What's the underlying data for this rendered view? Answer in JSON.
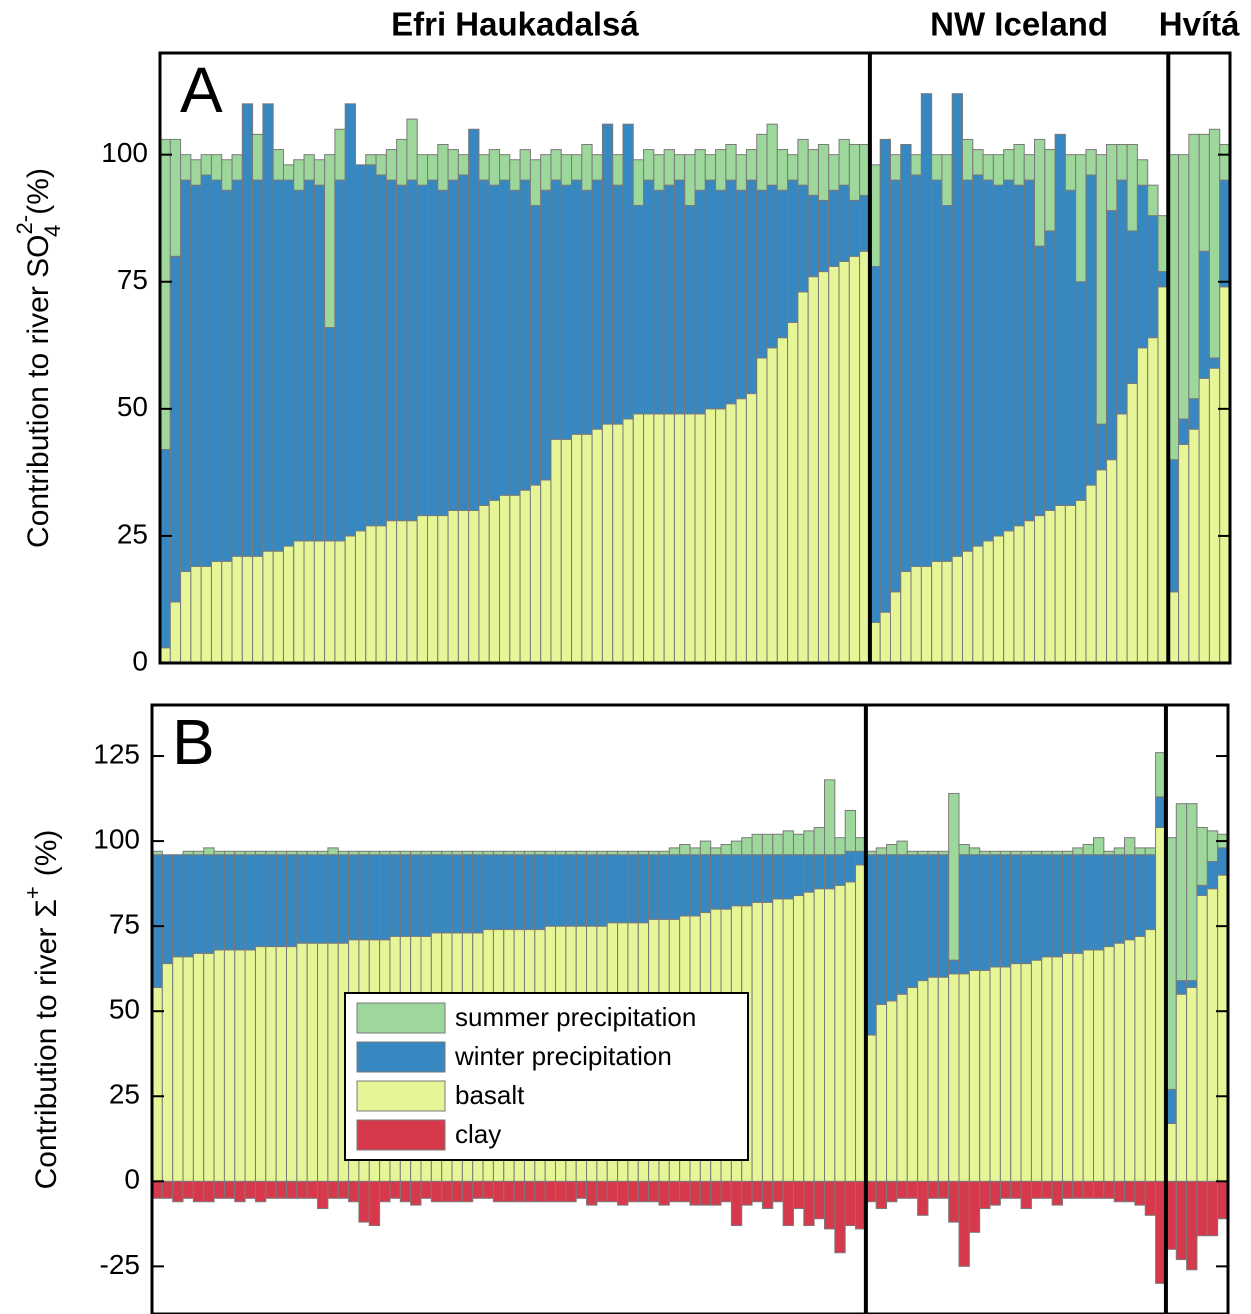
{
  "chart_data": [
    {
      "type": "stacked_bar",
      "panel_label": "A",
      "y_label": {
        "text": "Contribution to river SO",
        "sup": "2-",
        "sub": "4",
        "unit": "(%)"
      },
      "ylim": [
        0,
        120
      ],
      "yticks": [
        0,
        25,
        50,
        75,
        100
      ],
      "series": [
        {
          "color": "#9dd79b"
        },
        {
          "color": "#3787c0"
        },
        {
          "color": "#e6f697"
        }
      ],
      "groups": [
        {
          "label": "Efri Haukadalsá",
          "values": [
            [
              61,
              23,
              5,
              5,
              4,
              5,
              6,
              5,
              0,
              9,
              0,
              6,
              3,
              6,
              5,
              5,
              34,
              10,
              0,
              0,
              2,
              4,
              6,
              9,
              12,
              6,
              5,
              9,
              6,
              4,
              0,
              5,
              7,
              5,
              6,
              6,
              9,
              7,
              6,
              6,
              5,
              9,
              5,
              0,
              6,
              0,
              9,
              6,
              7,
              7,
              5,
              10,
              8,
              5,
              8,
              7,
              7,
              6,
              11,
              12,
              8,
              5,
              9,
              9,
              11,
              7,
              9,
              11,
              10
            ],
            [
              39,
              68,
              77,
              75,
              77,
              75,
              73,
              74,
              89,
              74,
              88,
              73,
              72,
              69,
              71,
              70,
              42,
              71,
              85,
              72,
              71,
              69,
              67,
              66,
              67,
              65,
              66,
              64,
              65,
              66,
              75,
              64,
              62,
              62,
              60,
              61,
              55,
              57,
              51,
              50,
              50,
              48,
              49,
              59,
              47,
              58,
              41,
              46,
              44,
              45,
              46,
              41,
              44,
              45,
              43,
              44,
              41,
              42,
              33,
              32,
              29,
              28,
              21,
              16,
              14,
              15,
              15,
              11,
              11
            ],
            [
              3,
              12,
              18,
              19,
              19,
              20,
              20,
              21,
              21,
              21,
              22,
              22,
              23,
              24,
              24,
              24,
              24,
              24,
              25,
              26,
              27,
              27,
              28,
              28,
              28,
              29,
              29,
              29,
              30,
              30,
              30,
              31,
              32,
              33,
              33,
              34,
              35,
              36,
              44,
              44,
              45,
              45,
              46,
              47,
              47,
              48,
              49,
              49,
              49,
              49,
              49,
              49,
              49,
              50,
              50,
              51,
              52,
              53,
              60,
              62,
              64,
              67,
              73,
              76,
              77,
              78,
              79,
              80,
              81
            ]
          ]
        },
        {
          "label": "NW Iceland",
          "values": [
            [
              20,
              0,
              5,
              0,
              4,
              0,
              5,
              10,
              0,
              8,
              5,
              5,
              6,
              6,
              8,
              5,
              21,
              16,
              0,
              7,
              25,
              5,
              53,
              13,
              7,
              17,
              5,
              6,
              11
            ],
            [
              70,
              93,
              81,
              84,
              77,
              93,
              75,
              70,
              91,
              73,
              73,
              71,
              69,
              69,
              67,
              67,
              53,
              55,
              73,
              62,
              43,
              61,
              9,
              49,
              46,
              30,
              32,
              24,
              3
            ],
            [
              8,
              10,
              14,
              18,
              19,
              19,
              20,
              20,
              21,
              22,
              23,
              24,
              25,
              26,
              27,
              28,
              29,
              30,
              31,
              31,
              32,
              35,
              38,
              40,
              49,
              55,
              62,
              64,
              74
            ]
          ]
        },
        {
          "label": "Hvítá",
          "values": [
            [
              60,
              52,
              52,
              23,
              45,
              7
            ],
            [
              26,
              5,
              6,
              25,
              2,
              21
            ],
            [
              14,
              43,
              46,
              56,
              58,
              74
            ]
          ]
        }
      ]
    },
    {
      "type": "stacked_bar",
      "panel_label": "B",
      "y_label": {
        "text": "Contribution to river",
        "symbol": "Σ",
        "sup": "+",
        "unit": "(%)"
      },
      "ylim": [
        -39,
        140
      ],
      "yticks": [
        -25,
        0,
        25,
        50,
        75,
        100,
        125
      ],
      "legend": "lower left",
      "series": [
        {
          "name": "summer precipitation",
          "color": "#9dd79b"
        },
        {
          "name": "winter precipitation",
          "color": "#3787c0"
        },
        {
          "name": "basalt",
          "color": "#e6f697"
        },
        {
          "name": "clay",
          "color": "#d5394b"
        }
      ],
      "groups": [
        {
          "values": [
            [
              1,
              0,
              0,
              1,
              1,
              2,
              1,
              1,
              1,
              1,
              1,
              1,
              1,
              1,
              1,
              1,
              1,
              2,
              1,
              1,
              1,
              1,
              1,
              1,
              1,
              1,
              1,
              1,
              1,
              1,
              1,
              1,
              1,
              1,
              1,
              1,
              1,
              1,
              1,
              1,
              1,
              1,
              1,
              1,
              1,
              1,
              1,
              1,
              1,
              1,
              2,
              3,
              2,
              4,
              2,
              3,
              4,
              5,
              6,
              6,
              6,
              7,
              6,
              7,
              8,
              22,
              5,
              12,
              4
            ],
            [
              39,
              32,
              30,
              30,
              29,
              29,
              28,
              28,
              28,
              28,
              27,
              27,
              27,
              27,
              26,
              26,
              26,
              26,
              26,
              25,
              25,
              25,
              25,
              24,
              24,
              24,
              24,
              23,
              23,
              23,
              23,
              23,
              22,
              22,
              22,
              22,
              22,
              22,
              21,
              21,
              21,
              21,
              21,
              21,
              20,
              20,
              20,
              20,
              19,
              19,
              19,
              18,
              18,
              17,
              16,
              16,
              15,
              15,
              14,
              14,
              13,
              13,
              12,
              11,
              10,
              10,
              9,
              9,
              4
            ],
            [
              57,
              64,
              66,
              66,
              67,
              67,
              68,
              68,
              68,
              68,
              69,
              69,
              69,
              69,
              70,
              70,
              70,
              70,
              70,
              71,
              71,
              71,
              71,
              72,
              72,
              72,
              72,
              73,
              73,
              73,
              73,
              73,
              74,
              74,
              74,
              74,
              74,
              74,
              75,
              75,
              75,
              75,
              75,
              75,
              76,
              76,
              76,
              76,
              77,
              77,
              77,
              78,
              78,
              79,
              80,
              80,
              81,
              81,
              82,
              82,
              83,
              83,
              84,
              85,
              86,
              86,
              87,
              88,
              93
            ],
            [
              -5,
              -5,
              -6,
              -5,
              -6,
              -6,
              -5,
              -5,
              -6,
              -5,
              -6,
              -5,
              -5,
              -5,
              -5,
              -5,
              -8,
              -5,
              -5,
              -6,
              -12,
              -13,
              -6,
              -5,
              -6,
              -7,
              -5,
              -6,
              -6,
              -6,
              -6,
              -5,
              -5,
              -6,
              -6,
              -6,
              -6,
              -6,
              -6,
              -6,
              -6,
              -5,
              -7,
              -6,
              -6,
              -7,
              -6,
              -6,
              -6,
              -7,
              -6,
              -6,
              -7,
              -7,
              -7,
              -6,
              -13,
              -7,
              -6,
              -8,
              -6,
              -13,
              -8,
              -13,
              -11,
              -14,
              -21,
              -13,
              -14
            ]
          ]
        },
        {
          "values": [
            [
              1,
              2,
              3,
              4,
              1,
              1,
              1,
              1,
              49,
              3,
              2,
              1,
              1,
              1,
              1,
              1,
              1,
              1,
              1,
              1,
              2,
              3,
              5,
              1,
              2,
              5,
              2,
              2,
              13
            ],
            [
              53,
              44,
              43,
              41,
              39,
              37,
              36,
              36,
              4,
              35,
              34,
              34,
              33,
              33,
              32,
              32,
              31,
              30,
              30,
              29,
              29,
              28,
              28,
              27,
              26,
              25,
              24,
              22,
              9
            ],
            [
              43,
              52,
              53,
              55,
              57,
              59,
              60,
              60,
              61,
              61,
              62,
              62,
              63,
              63,
              64,
              64,
              65,
              66,
              66,
              67,
              67,
              68,
              68,
              69,
              70,
              71,
              72,
              74,
              104
            ],
            [
              -6,
              -8,
              -6,
              -5,
              -5,
              -10,
              -5,
              -5,
              -12,
              -25,
              -15,
              -8,
              -7,
              -5,
              -5,
              -8,
              -5,
              -5,
              -7,
              -5,
              -5,
              -5,
              -5,
              -5,
              -6,
              -6,
              -7,
              -10,
              -30
            ]
          ]
        },
        {
          "values": [
            [
              74,
              52,
              52,
              17,
              9,
              4
            ],
            [
              10,
              4,
              2,
              3,
              8,
              8
            ],
            [
              17,
              55,
              57,
              84,
              86,
              90
            ],
            [
              -20,
              -23,
              -26,
              -16,
              -16,
              -11
            ]
          ]
        }
      ]
    }
  ]
}
